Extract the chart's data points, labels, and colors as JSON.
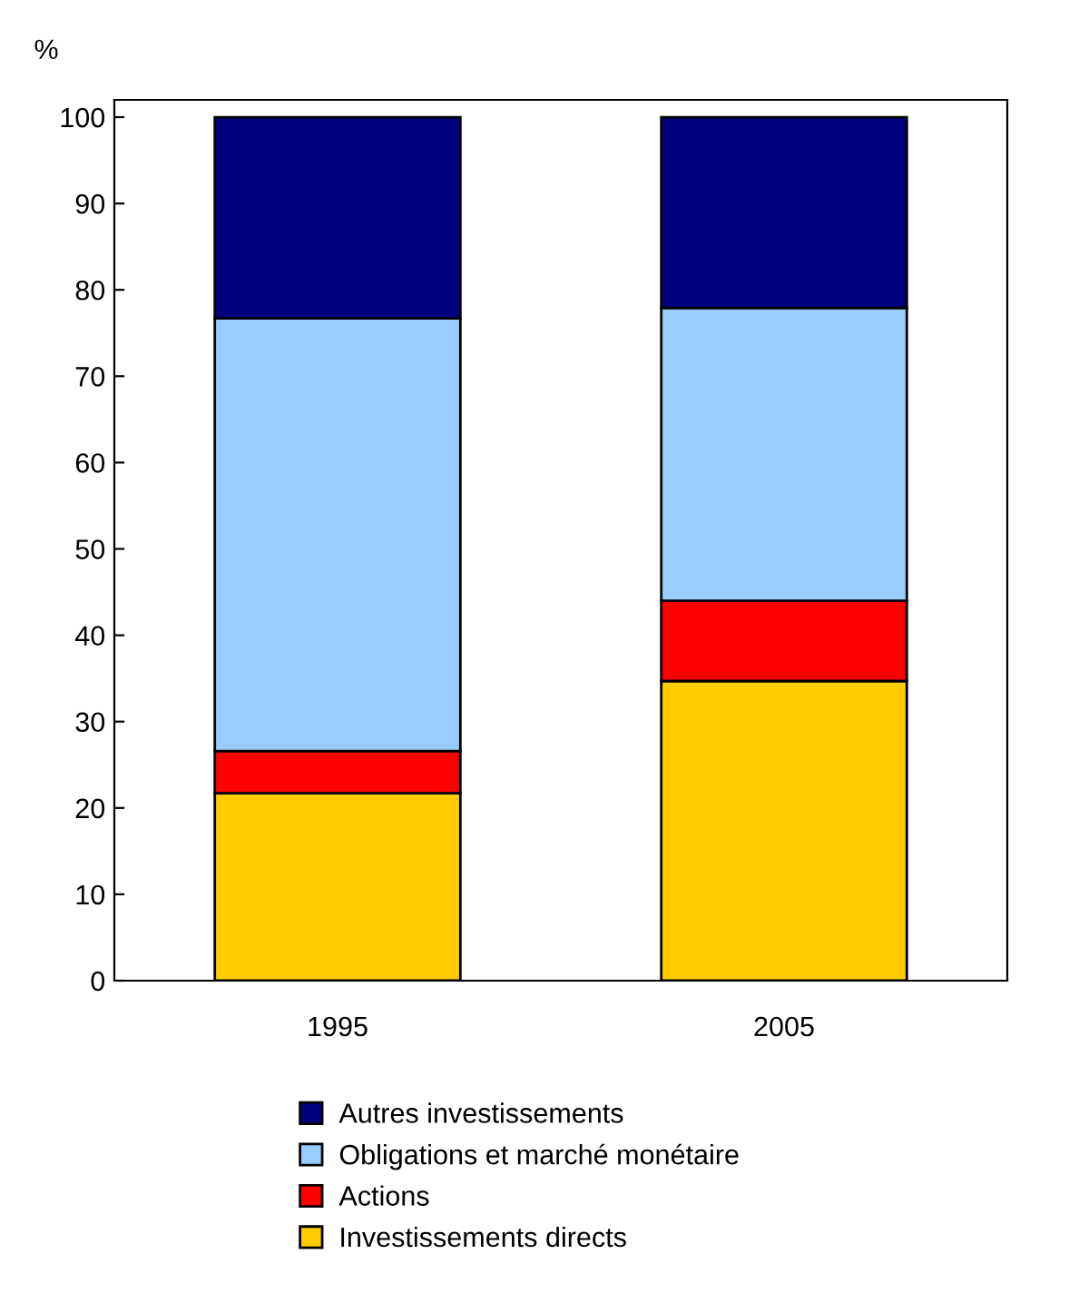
{
  "chart_data": {
    "type": "bar",
    "stacked": true,
    "ylabel": "%",
    "categories": [
      "1995",
      "2005"
    ],
    "series": [
      {
        "name": "Investissements directs",
        "color": "#ffcc00",
        "values": [
          21.7,
          34.7
        ]
      },
      {
        "name": "Actions",
        "color": "#ff0000",
        "values": [
          4.9,
          9.3
        ]
      },
      {
        "name": "Obligations et marché monétaire",
        "color": "#99ccff",
        "values": [
          50.1,
          33.9
        ]
      },
      {
        "name": "Autres investissements",
        "color": "#000080",
        "values": [
          23.3,
          22.1
        ]
      }
    ],
    "ylim": [
      0,
      102
    ],
    "yticks": [
      0,
      10,
      20,
      30,
      40,
      50,
      60,
      70,
      80,
      90,
      100
    ],
    "grid": false,
    "legend": "bottom"
  }
}
